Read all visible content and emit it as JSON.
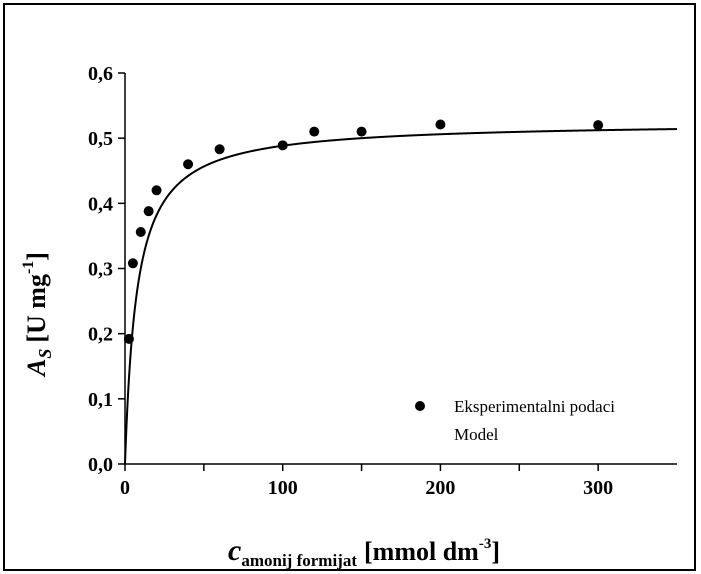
{
  "chart_data": {
    "type": "scatter",
    "xlabel": {
      "main": "c",
      "sub": "amonij formijat",
      "unit": "[mmol dm",
      "unit_sup": "-3",
      "unit_end": "]"
    },
    "ylabel": {
      "main": "A",
      "sub": "S",
      "unit": "[U mg",
      "unit_sup": "-1",
      "unit_end": "]"
    },
    "xlim": [
      0,
      350
    ],
    "ylim": [
      0,
      0.6
    ],
    "x_ticks": [
      0,
      100,
      200,
      300
    ],
    "x_tick_labels": [
      "0",
      "100",
      "200",
      "300"
    ],
    "y_ticks": [
      0,
      0.1,
      0.2,
      0.3,
      0.4,
      0.5,
      0.6
    ],
    "y_tick_labels": [
      "0,0",
      "0,1",
      "0,2",
      "0,3",
      "0,4",
      "0,5",
      "0,6"
    ],
    "grid": false,
    "legend_position": "bottom-right",
    "series": [
      {
        "name": "Eksperimentalni podaci",
        "kind": "points",
        "color": "#000000",
        "x": [
          2.5,
          5,
          10,
          15,
          20,
          40,
          60,
          100,
          120,
          150,
          200,
          300
        ],
        "y": [
          0.192,
          0.308,
          0.356,
          0.388,
          0.42,
          0.46,
          0.483,
          0.489,
          0.51,
          0.51,
          0.521,
          0.52
        ]
      },
      {
        "name": "Model",
        "kind": "line",
        "color": "#000000",
        "model": "michaelis-menten",
        "vmax": 0.525,
        "km": 7.5
      }
    ]
  }
}
